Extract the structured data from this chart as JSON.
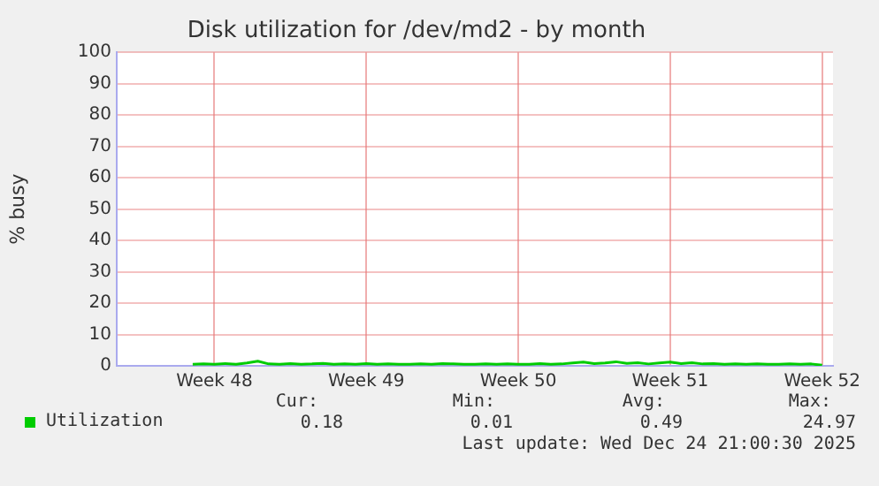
{
  "chart_data": {
    "type": "line",
    "title": "Disk utilization for /dev/md2 - by month",
    "ylabel": "% busy",
    "categories": [
      null,
      null,
      null,
      null,
      null,
      null,
      null,
      null,
      null,
      "Week 48",
      null,
      null,
      null,
      null,
      null,
      null,
      null,
      null,
      null,
      null,
      null,
      null,
      null,
      "Week 49",
      null,
      null,
      null,
      null,
      null,
      null,
      null,
      null,
      null,
      null,
      null,
      null,
      null,
      "Week 50",
      null,
      null,
      null,
      null,
      null,
      null,
      null,
      null,
      null,
      null,
      null,
      null,
      null,
      "Week 51",
      null,
      null,
      null,
      null,
      null,
      null,
      null,
      null,
      null,
      null,
      null,
      null,
      null,
      "Week 52",
      null
    ],
    "series": [
      {
        "name": "Utilization",
        "color": "#00cc00",
        "values": [
          null,
          null,
          null,
          null,
          null,
          null,
          null,
          0.5,
          0.6,
          0.5,
          0.7,
          0.5,
          0.9,
          1.5,
          0.6,
          0.5,
          0.7,
          0.5,
          0.6,
          0.8,
          0.5,
          0.6,
          0.5,
          0.7,
          0.5,
          0.6,
          0.5,
          0.5,
          0.6,
          0.5,
          0.7,
          0.6,
          0.5,
          0.5,
          0.6,
          0.5,
          0.6,
          0.5,
          0.5,
          0.7,
          0.5,
          0.6,
          0.9,
          1.2,
          0.7,
          0.9,
          1.3,
          0.8,
          1.0,
          0.6,
          0.9,
          1.2,
          0.7,
          1.0,
          0.6,
          0.7,
          0.5,
          0.6,
          0.5,
          0.6,
          0.5,
          0.5,
          0.6,
          0.5,
          0.6,
          0.2,
          null
        ]
      }
    ],
    "ylim": [
      0,
      100
    ],
    "yticks": [
      0,
      10,
      20,
      30,
      40,
      50,
      60,
      70,
      80,
      90,
      100
    ],
    "grid": true,
    "legend": "bottom left",
    "marker": "none",
    "line_style": "solid",
    "annotations": [
      "Cur:",
      "Min:",
      "Avg:",
      "Max:",
      "0.18",
      "0.01",
      "0.49",
      "24.97",
      "Last update: Wed Dec 24 21:00:30 2025"
    ]
  }
}
